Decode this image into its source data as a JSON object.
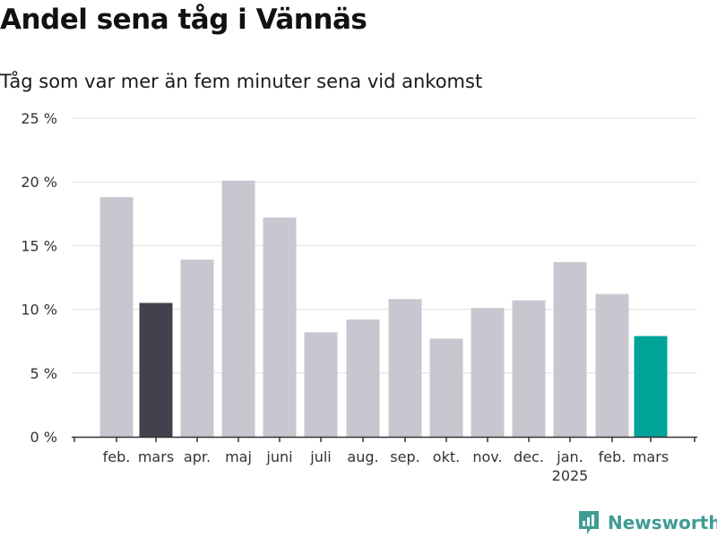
{
  "header": {
    "title": "Andel sena tåg i Vännäs",
    "subtitle": "Tåg som var mer än fem minuter sena vid ankomst"
  },
  "brand": {
    "name": "Newsworthy",
    "icon": "bar-chart-logo-icon",
    "color": "#3e9c94"
  },
  "colors": {
    "default": "#c8c7d0",
    "highlight_previous": "#43414d",
    "highlight_current": "#00a398",
    "grid": "#e0e0e0",
    "axis": "#333333"
  },
  "chart_data": {
    "type": "bar",
    "categories": [
      "feb.",
      "mars",
      "apr.",
      "maj",
      "juni",
      "juli",
      "aug.",
      "sep.",
      "okt.",
      "nov.",
      "dec.",
      "jan.",
      "feb.",
      "mars"
    ],
    "year_labels": [
      "",
      "",
      "",
      "",
      "",
      "",
      "",
      "",
      "",
      "",
      "",
      "2025",
      "",
      ""
    ],
    "values": [
      18.8,
      10.5,
      13.9,
      20.1,
      17.2,
      8.2,
      9.2,
      10.8,
      7.7,
      10.1,
      10.7,
      13.7,
      11.2,
      7.9
    ],
    "highlight": [
      "default",
      "previous",
      "default",
      "default",
      "default",
      "default",
      "default",
      "default",
      "default",
      "default",
      "default",
      "default",
      "default",
      "current"
    ],
    "y_ticks": [
      0,
      5,
      10,
      15,
      20,
      25
    ],
    "y_tick_labels": [
      "0 %",
      "5 %",
      "10 %",
      "15 %",
      "20 %",
      "25 %"
    ],
    "ylim": [
      0,
      25
    ],
    "grid": true
  }
}
